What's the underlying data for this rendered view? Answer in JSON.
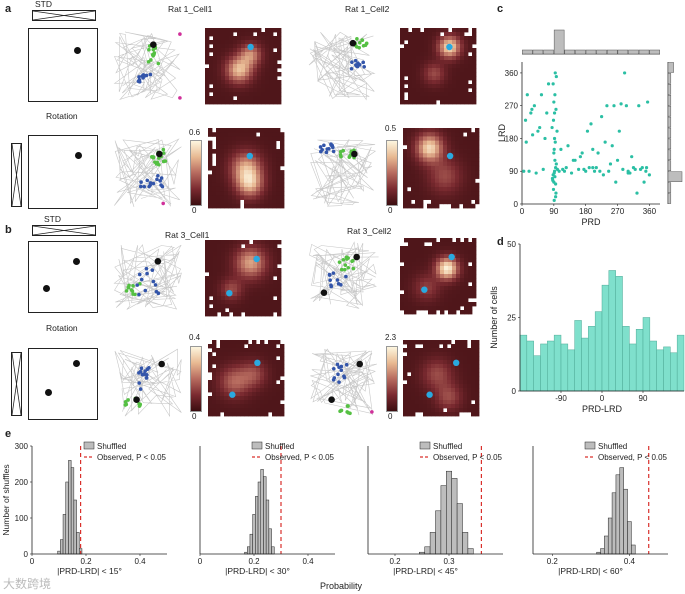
{
  "panels": {
    "a": "a",
    "b": "b",
    "c": "c",
    "d": "d",
    "e": "e"
  },
  "a": {
    "std_label": "STD",
    "rotation_label": "Rotation",
    "cell1_title": "Rat 1_Cell1",
    "cell2_title": "Rat 1_Cell2",
    "cbar1_max": "0.6",
    "cbar1_min": "0",
    "cbar2_max": "0.5",
    "cbar2_min": "0"
  },
  "b": {
    "std_label": "STD",
    "rotation_label": "Rotation",
    "cell1_title": "Rat 3_Cell1",
    "cell2_title": "Rat 3_Cell2",
    "cbar1_max": "0.4",
    "cbar1_min": "0",
    "cbar2_max": "2.3",
    "cbar2_min": "0"
  },
  "colors": {
    "teal": "#2bbfa4",
    "green": "#55c043",
    "blue": "#3355aa",
    "cyan": "#2aa9e0",
    "magenta": "#d0309a",
    "trajectory": "#c8c8c8",
    "heatmap_dark": "#3b0d10",
    "heatmap_bright": "#fdf6df",
    "shuffled_fill": "#bdbdbd",
    "observed_line": "#d9302c",
    "hist_fill": "#7fe0cc"
  },
  "chart_data": [
    {
      "id": "c",
      "type": "scatter",
      "xlabel": "PRD",
      "ylabel": "LRD",
      "xlim": [
        0,
        390
      ],
      "ylim": [
        0,
        390
      ],
      "xticks": [
        "0",
        "90",
        "180",
        "270",
        "360"
      ],
      "yticks": [
        "0",
        "90",
        "180",
        "270",
        "360"
      ],
      "x": [
        92,
        95,
        88,
        97,
        90,
        93,
        100,
        86,
        91,
        94,
        89,
        96,
        99,
        85,
        92,
        90,
        93,
        88,
        95,
        91,
        94,
        97,
        90,
        92,
        89,
        96,
        93,
        91,
        87,
        95,
        180,
        175,
        210,
        230,
        250,
        260,
        120,
        140,
        160,
        200,
        220,
        240,
        280,
        300,
        320,
        340,
        350,
        20,
        40,
        60,
        30,
        50,
        10,
        70,
        110,
        130,
        150,
        170,
        190,
        270,
        275,
        265,
        300,
        310,
        330,
        355,
        15,
        25,
        45,
        65,
        200,
        215,
        235,
        255,
        245,
        285,
        290,
        315,
        325,
        345,
        360,
        5,
        35,
        55,
        75,
        105,
        115,
        125,
        145,
        165,
        185,
        195,
        225,
        205,
        295,
        305,
        335,
        352,
        12,
        28
      ],
      "y": [
        90,
        100,
        80,
        110,
        60,
        120,
        95,
        70,
        150,
        170,
        40,
        30,
        200,
        210,
        250,
        280,
        300,
        330,
        20,
        10,
        360,
        350,
        140,
        180,
        230,
        260,
        75,
        85,
        65,
        55,
        90,
        95,
        100,
        80,
        110,
        270,
        90,
        85,
        95,
        100,
        90,
        270,
        275,
        90,
        95,
        100,
        90,
        90,
        85,
        95,
        190,
        210,
        230,
        250,
        150,
        160,
        120,
        140,
        100,
        120,
        200,
        60,
        85,
        130,
        270,
        280,
        300,
        250,
        200,
        180,
        150,
        140,
        170,
        160,
        90,
        95,
        360,
        100,
        30,
        60,
        80,
        90,
        270,
        300,
        330,
        90,
        95,
        100,
        120,
        130,
        200,
        220,
        240,
        90,
        270,
        85,
        95,
        100,
        170,
        260
      ]
    },
    {
      "id": "c-top",
      "type": "bar",
      "xlim": [
        0,
        390
      ],
      "x": [
        15,
        45,
        75,
        105,
        135,
        165,
        195,
        225,
        255,
        285,
        315,
        345,
        375
      ],
      "values": [
        1,
        1,
        1,
        6,
        1,
        1,
        1,
        1,
        1,
        1,
        1,
        1,
        1
      ]
    },
    {
      "id": "c-right",
      "type": "bar",
      "ylim": [
        0,
        390
      ],
      "y": [
        15,
        45,
        75,
        105,
        135,
        165,
        195,
        225,
        255,
        285,
        315,
        345,
        375
      ],
      "values": [
        1,
        1,
        5,
        1,
        1,
        1,
        1,
        1,
        1,
        1,
        1,
        1,
        2
      ]
    },
    {
      "id": "d",
      "type": "bar",
      "xlabel": "PRD-LRD",
      "ylabel": "Number of cells",
      "ylim": [
        0,
        50
      ],
      "xlim": [
        -180,
        180
      ],
      "xticks": [
        "-90",
        "0",
        "90"
      ],
      "yticks": [
        "0",
        "25",
        "50"
      ],
      "x": [
        -172.5,
        -157.5,
        -142.5,
        -127.5,
        -112.5,
        -97.5,
        -82.5,
        -67.5,
        -52.5,
        -37.5,
        -22.5,
        -7.5,
        7.5,
        22.5,
        37.5,
        52.5,
        67.5,
        82.5,
        97.5,
        112.5,
        127.5,
        142.5,
        157.5,
        172.5
      ],
      "values": [
        19,
        17,
        12,
        16,
        17,
        19,
        16,
        14,
        24,
        18,
        22,
        27,
        36,
        41,
        39,
        22,
        16,
        21,
        25,
        17,
        14,
        15,
        13,
        19
      ]
    },
    {
      "id": "e1",
      "type": "bar",
      "series": [
        {
          "name": "Shuffled"
        }
      ],
      "observed_label": "Observed, P < 0.05",
      "observed": 0.18,
      "xlabel": "|PRD-LRD| < 15°",
      "ylabel": "Number of shuffles",
      "xlim": [
        0,
        0.5
      ],
      "ylim": [
        0,
        300
      ],
      "xticks": [
        "0",
        "0.2",
        "0.4"
      ],
      "yticks": [
        "0",
        "100",
        "200",
        "300"
      ],
      "x": [
        0.1,
        0.11,
        0.12,
        0.13,
        0.14,
        0.15,
        0.16,
        0.17,
        0.18
      ],
      "values": [
        8,
        40,
        110,
        200,
        260,
        240,
        150,
        60,
        15
      ]
    },
    {
      "id": "e2",
      "type": "bar",
      "series": [
        {
          "name": "Shuffled"
        }
      ],
      "observed_label": "Observed, P < 0.05",
      "observed": 0.3,
      "xlabel": "|PRD-LRD| < 30°",
      "xlim": [
        0,
        0.5
      ],
      "ylim": [
        0,
        300
      ],
      "xticks": [
        "0",
        "0.2",
        "0.4"
      ],
      "x": [
        0.17,
        0.18,
        0.19,
        0.2,
        0.21,
        0.22,
        0.23,
        0.24,
        0.25,
        0.26,
        0.27
      ],
      "values": [
        5,
        20,
        55,
        110,
        160,
        200,
        235,
        215,
        150,
        70,
        20
      ]
    },
    {
      "id": "e3",
      "type": "bar",
      "series": [
        {
          "name": "Shuffled"
        }
      ],
      "observed_label": "Observed, P < 0.05",
      "observed": 0.36,
      "xlabel": "|PRD-LRD| < 45°",
      "xlim": [
        0.15,
        0.4
      ],
      "ylim": [
        0,
        300
      ],
      "xticks": [
        "0.2",
        "0.3"
      ],
      "x": [
        0.25,
        0.26,
        0.27,
        0.28,
        0.29,
        0.3,
        0.31,
        0.32,
        0.33,
        0.34
      ],
      "values": [
        5,
        20,
        60,
        120,
        190,
        230,
        210,
        140,
        60,
        15
      ]
    },
    {
      "id": "e4",
      "type": "bar",
      "series": [
        {
          "name": "Shuffled"
        }
      ],
      "observed_label": "Observed, P < 0.05",
      "observed": 0.45,
      "xlabel": "|PRD-LRD| < 60°",
      "xlim": [
        0.15,
        0.5
      ],
      "ylim": [
        0,
        300
      ],
      "xticks": [
        "0.2",
        "0.4"
      ],
      "x": [
        0.32,
        0.33,
        0.34,
        0.35,
        0.36,
        0.37,
        0.38,
        0.39,
        0.4,
        0.41
      ],
      "values": [
        5,
        15,
        50,
        100,
        170,
        220,
        240,
        180,
        90,
        25
      ]
    }
  ],
  "e_common": {
    "xaxis_label": "Probability"
  },
  "watermark": "大数跨境"
}
